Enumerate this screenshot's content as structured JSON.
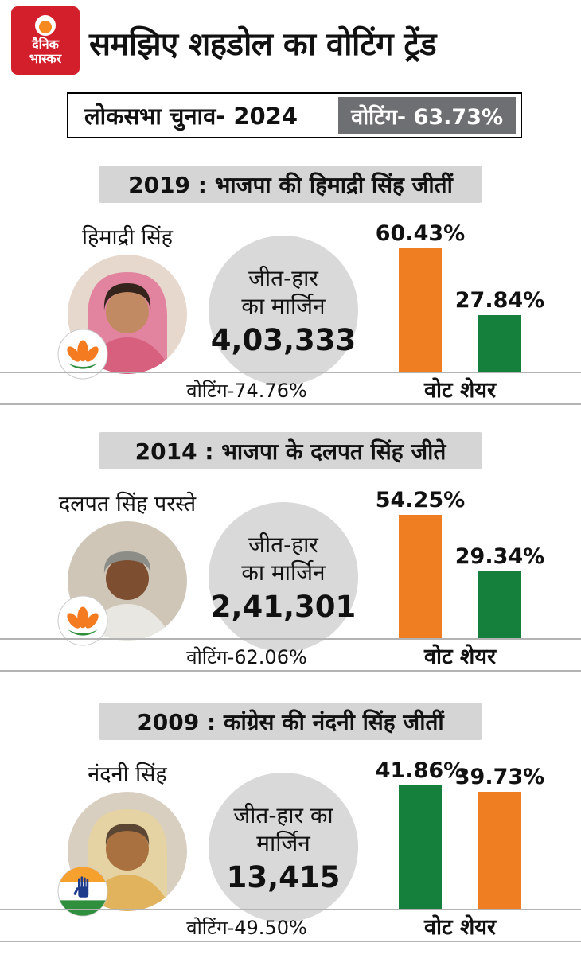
{
  "brand": {
    "line1": "दैनिक",
    "line2": "भास्कर",
    "bg_color": "#d21f2b",
    "sun_color": "#f6891f"
  },
  "header": {
    "title": "समझिए शहडोल का वोटिंग ट्रेंड"
  },
  "subheader": {
    "election_label": "लोकसभा चुनाव- 2024",
    "voting_label": "वोटिंग- 63.73%",
    "badge_color": "#6e6f72"
  },
  "colors": {
    "orange": "#ef7d22",
    "green": "#15803c",
    "header_gray": "#d5d5d5",
    "circle_gray": "#d9d9d9"
  },
  "sections": [
    {
      "header": "2019 : भाजपा की हिमाद्री सिंह जीतीं",
      "candidate_name": "हिमाद्री सिंह",
      "party_icon": "bjp-lotus",
      "margin_label_line1": "जीत-हार",
      "margin_label_line2": "का मार्जिन",
      "margin_value": "4,03,333",
      "turnout_label": "वोटिंग-74.76%",
      "vote_share_label": "वोट शेयर",
      "bars": [
        {
          "label": "60.43%",
          "value": 60.43,
          "color": "#ef7d22"
        },
        {
          "label": "27.84%",
          "value": 27.84,
          "color": "#15803c"
        }
      ]
    },
    {
      "header": "2014 : भाजपा के दलपत सिंह जीते",
      "candidate_name": "दलपत सिंह परस्ते",
      "party_icon": "bjp-lotus",
      "margin_label_line1": "जीत-हार",
      "margin_label_line2": "का मार्जिन",
      "margin_value": "2,41,301",
      "turnout_label": "वोटिंग-62.06%",
      "vote_share_label": "वोट शेयर",
      "bars": [
        {
          "label": "54.25%",
          "value": 54.25,
          "color": "#ef7d22"
        },
        {
          "label": "29.34%",
          "value": 29.34,
          "color": "#15803c"
        }
      ]
    },
    {
      "header": "2009 : कांग्रेस की नंदनी सिंह जीतीं",
      "candidate_name": "नंदनी सिंह",
      "party_icon": "congress-hand",
      "margin_label_line1": "जीत-हार का",
      "margin_label_line2": "मार्जिन",
      "margin_value": "13,415",
      "turnout_label": "वोटिंग-49.50%",
      "vote_share_label": "वोट शेयर",
      "bars": [
        {
          "label": "41.86%",
          "value": 41.86,
          "color": "#15803c"
        },
        {
          "label": "39.73%",
          "value": 39.73,
          "color": "#ef7d22"
        }
      ]
    }
  ],
  "chart_data": [
    {
      "type": "bar",
      "title": "2019 : भाजपा की हिमाद्री सिंह जीतीं",
      "values": [
        60.43,
        27.84
      ],
      "data_labels": [
        "60.43%",
        "27.84%"
      ],
      "bar_colors": [
        "#ef7d22",
        "#15803c"
      ],
      "xlabel": "वोट शेयर",
      "grid": false,
      "annotations": {
        "margin": "4,03,333",
        "turnout": "वोटिंग-74.76%"
      }
    },
    {
      "type": "bar",
      "title": "2014 : भाजपा के दलपत सिंह जीते",
      "values": [
        54.25,
        29.34
      ],
      "data_labels": [
        "54.25%",
        "29.34%"
      ],
      "bar_colors": [
        "#ef7d22",
        "#15803c"
      ],
      "xlabel": "वोट शेयर",
      "grid": false,
      "annotations": {
        "margin": "2,41,301",
        "turnout": "वोटिंग-62.06%"
      }
    },
    {
      "type": "bar",
      "title": "2009 : कांग्रेस की नंदनी सिंह जीतीं",
      "values": [
        41.86,
        39.73
      ],
      "data_labels": [
        "41.86%",
        "39.73%"
      ],
      "bar_colors": [
        "#15803c",
        "#ef7d22"
      ],
      "xlabel": "वोट शेयर",
      "grid": false,
      "annotations": {
        "margin": "13,415",
        "turnout": "वोटिंग-49.50%"
      }
    }
  ]
}
